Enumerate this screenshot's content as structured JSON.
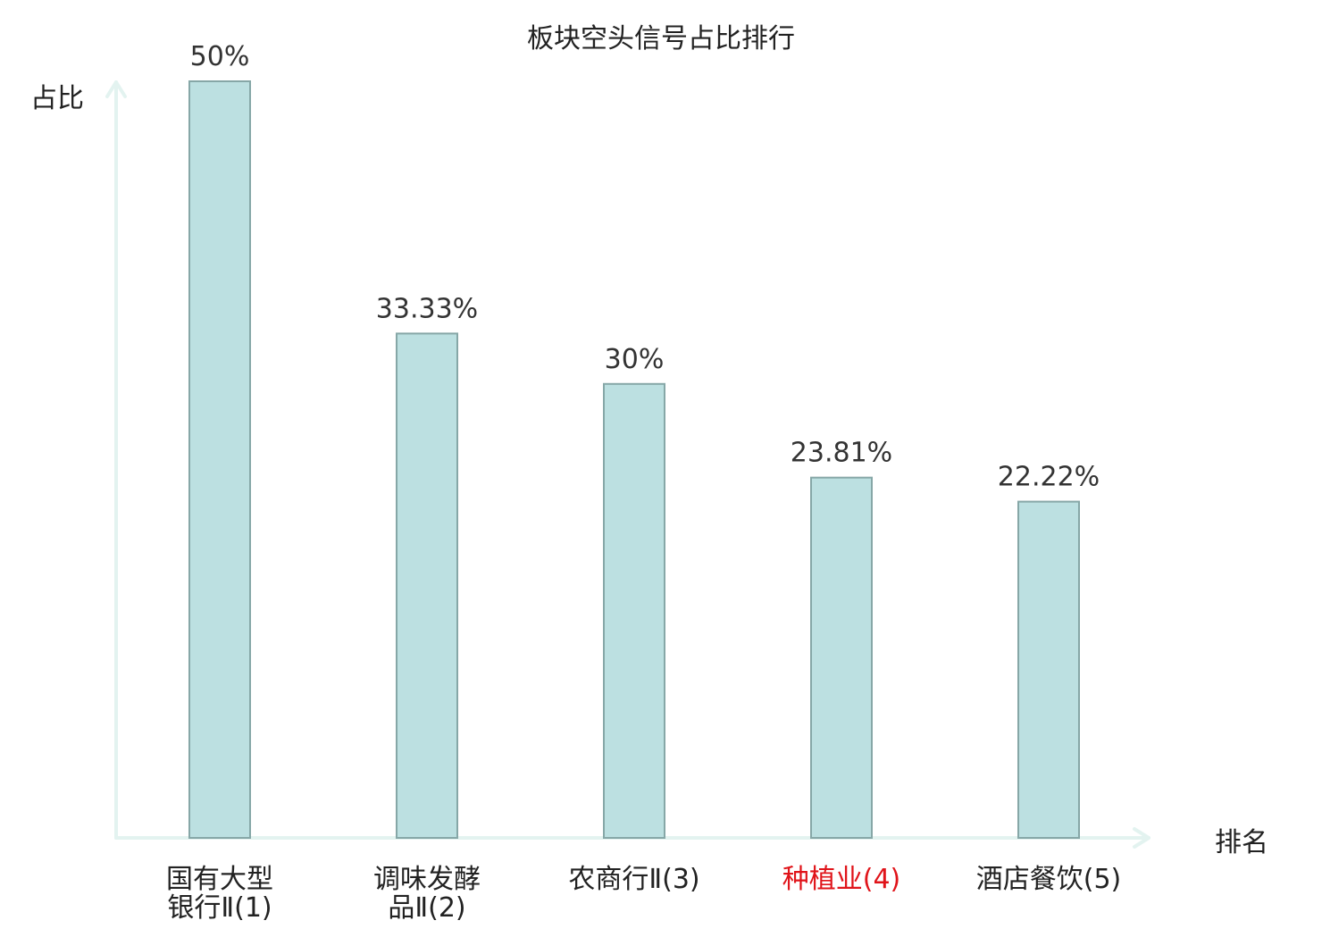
{
  "chart_data": {
    "type": "bar",
    "title": "板块空头信号占比排行",
    "xlabel": "排名",
    "ylabel": "占比",
    "ylim": [
      0,
      50
    ],
    "grid": false,
    "categories": [
      {
        "lines": [
          "国有大型",
          "银行Ⅱ(1)"
        ],
        "highlight": false
      },
      {
        "lines": [
          "调味发酵",
          "品Ⅱ(2)"
        ],
        "highlight": false
      },
      {
        "lines": [
          "农商行Ⅱ(3)"
        ],
        "highlight": false
      },
      {
        "lines": [
          "种植业(4)"
        ],
        "highlight": true
      },
      {
        "lines": [
          "酒店餐饮(5)"
        ],
        "highlight": false
      }
    ],
    "values": [
      50,
      33.33,
      30,
      23.81,
      22.22
    ],
    "value_labels": [
      "50%",
      "33.33%",
      "30%",
      "23.81%",
      "22.22%"
    ],
    "colors": {
      "bar_fill": "#bce0e1",
      "bar_stroke": "#86a7a7",
      "axis": "#e3f3f0",
      "highlight_label": "#e0141a"
    }
  }
}
